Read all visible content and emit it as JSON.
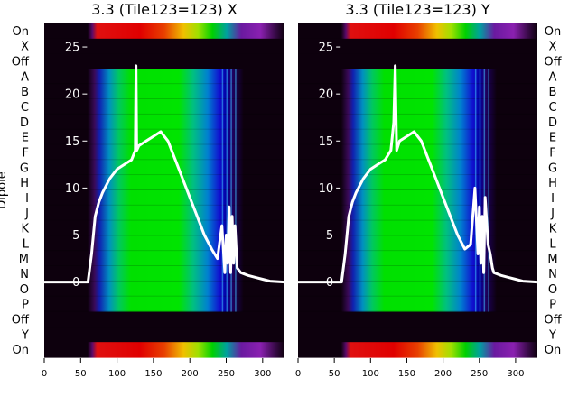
{
  "chart_data": [
    {
      "type": "heatmap",
      "title": "3.3 (Tile123=123) X",
      "ylabel": "Dipole",
      "x_ticks": [
        0,
        50,
        100,
        150,
        200,
        250,
        300
      ],
      "xlim": [
        0,
        330
      ],
      "row_labels": [
        "On",
        "X",
        "Off",
        "A",
        "B",
        "C",
        "D",
        "E",
        "F",
        "G",
        "H",
        "I",
        "J",
        "K",
        "L",
        "M",
        "N",
        "O",
        "P",
        "Off",
        "Y",
        "On"
      ],
      "overlay_ticks": [
        0,
        5,
        10,
        15,
        20,
        25
      ],
      "overlay_ylim": [
        -8,
        27.5
      ],
      "overlay_line": {
        "x": [
          0,
          60,
          65,
          70,
          75,
          80,
          90,
          100,
          110,
          120,
          125,
          126,
          127,
          130,
          140,
          150,
          160,
          170,
          180,
          190,
          200,
          210,
          220,
          230,
          238,
          244,
          248,
          250,
          252,
          254,
          256,
          258,
          260,
          262,
          265,
          270,
          280,
          290,
          300,
          310,
          320,
          330
        ],
        "y": [
          0,
          0,
          3,
          7,
          8.5,
          9.5,
          11,
          12,
          12.5,
          13,
          14,
          23,
          14,
          14.5,
          15,
          15.5,
          16,
          15,
          13,
          11,
          9,
          7,
          5,
          3.5,
          2.5,
          6,
          1,
          5,
          2,
          8,
          1,
          7,
          2,
          6,
          1.5,
          1,
          0.7,
          0.5,
          0.3,
          0.1,
          0.05,
          0
        ]
      }
    },
    {
      "type": "heatmap",
      "title": "3.3 (Tile123=123) Y",
      "x_ticks": [
        0,
        50,
        100,
        150,
        200,
        250,
        300
      ],
      "xlim": [
        0,
        330
      ],
      "row_labels": [
        "On",
        "X",
        "Off",
        "A",
        "B",
        "C",
        "D",
        "E",
        "F",
        "G",
        "H",
        "I",
        "J",
        "K",
        "L",
        "M",
        "N",
        "O",
        "P",
        "Off",
        "Y",
        "On"
      ],
      "overlay_ticks": [
        0,
        5,
        10,
        15,
        20,
        25
      ],
      "overlay_ylim": [
        -8,
        27.5
      ],
      "overlay_line": {
        "x": [
          0,
          60,
          65,
          70,
          75,
          80,
          90,
          100,
          110,
          120,
          128,
          132,
          134,
          136,
          140,
          150,
          160,
          170,
          180,
          190,
          200,
          210,
          220,
          230,
          238,
          244,
          248,
          250,
          252,
          254,
          256,
          258,
          262,
          265,
          268,
          270,
          280,
          290,
          300,
          310,
          320,
          330
        ],
        "y": [
          0,
          0,
          3,
          7,
          8.5,
          9.5,
          11,
          12,
          12.5,
          13,
          14,
          17,
          23,
          14,
          15,
          15.5,
          16,
          15,
          13,
          11,
          9,
          7,
          5,
          3.5,
          4,
          10,
          3,
          8,
          2,
          7,
          1,
          9,
          4,
          3,
          1.5,
          1,
          0.7,
          0.5,
          0.3,
          0.1,
          0.05,
          0
        ]
      }
    }
  ],
  "colors": {
    "background": "#0d000d",
    "overlay_line": "#ffffff",
    "gradient_purple": "#7a1fa2",
    "gradient_blue": "#1010e0",
    "gradient_green": "#00e000",
    "gradient_yellow": "#f0e000",
    "gradient_red": "#e00000"
  }
}
